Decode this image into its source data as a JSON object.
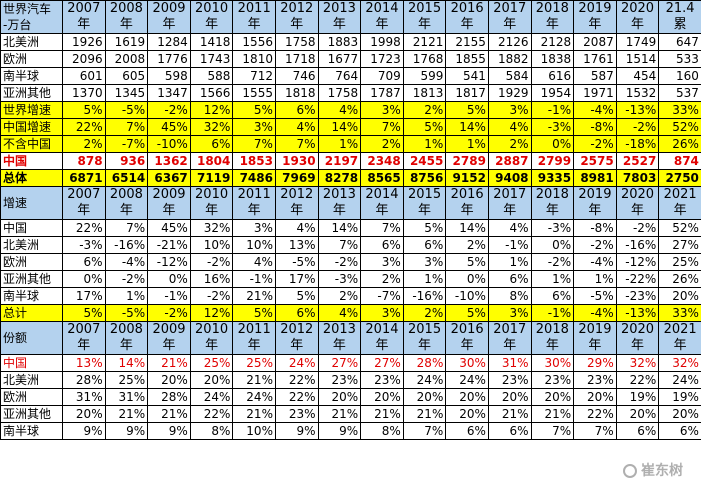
{
  "section1": {
    "header_label_line1": "世界汽车",
    "header_label_line2": "-万台",
    "year_headers": [
      "2007",
      "2008",
      "2009",
      "2010",
      "2011",
      "2012",
      "2013",
      "2014",
      "2015",
      "2016",
      "2017",
      "2018",
      "2019",
      "2020",
      "21.4"
    ],
    "year_suffixes": [
      "年",
      "年",
      "年",
      "年",
      "年",
      "年",
      "年",
      "年",
      "年",
      "年",
      "年",
      "年",
      "年",
      "年",
      "累"
    ],
    "rows": [
      {
        "label": "北美洲",
        "style": "",
        "values": [
          "1926",
          "1619",
          "1284",
          "1418",
          "1556",
          "1758",
          "1883",
          "1998",
          "2121",
          "2155",
          "2126",
          "2128",
          "2087",
          "1749",
          "647"
        ]
      },
      {
        "label": "欧洲",
        "style": "",
        "values": [
          "2096",
          "2008",
          "1776",
          "1743",
          "1810",
          "1718",
          "1677",
          "1723",
          "1768",
          "1855",
          "1882",
          "1838",
          "1761",
          "1514",
          "533"
        ]
      },
      {
        "label": "南半球",
        "style": "",
        "values": [
          "601",
          "605",
          "598",
          "588",
          "712",
          "746",
          "764",
          "709",
          "599",
          "541",
          "584",
          "616",
          "587",
          "454",
          "160"
        ]
      },
      {
        "label": "亚洲其他",
        "style": "",
        "values": [
          "1370",
          "1345",
          "1347",
          "1566",
          "1555",
          "1818",
          "1758",
          "1787",
          "1813",
          "1817",
          "1929",
          "1954",
          "1971",
          "1532",
          "537"
        ]
      },
      {
        "label": "世界增速",
        "style": "yellow",
        "values": [
          "5%",
          "-5%",
          "-2%",
          "12%",
          "5%",
          "6%",
          "4%",
          "3%",
          "2%",
          "5%",
          "3%",
          "-1%",
          "-4%",
          "-13%",
          "33%"
        ]
      },
      {
        "label": "中国增速",
        "style": "yellow",
        "values": [
          "22%",
          "7%",
          "45%",
          "32%",
          "3%",
          "4%",
          "14%",
          "7%",
          "5%",
          "14%",
          "4%",
          "-3%",
          "-8%",
          "-2%",
          "52%"
        ]
      },
      {
        "label": "不含中国",
        "style": "yellow",
        "values": [
          "2%",
          "-7%",
          "-10%",
          "6%",
          "7%",
          "7%",
          "1%",
          "2%",
          "1%",
          "1%",
          "2%",
          "0%",
          "-2%",
          "-18%",
          "26%"
        ]
      },
      {
        "label": "中国",
        "style": "red",
        "values": [
          "878",
          "936",
          "1362",
          "1804",
          "1853",
          "1930",
          "2197",
          "2348",
          "2455",
          "2789",
          "2887",
          "2799",
          "2575",
          "2527",
          "874"
        ]
      },
      {
        "label": "总体",
        "style": "yellow bold",
        "values": [
          "6871",
          "6514",
          "6367",
          "7119",
          "7486",
          "7969",
          "8278",
          "8565",
          "8756",
          "9152",
          "9408",
          "9335",
          "8981",
          "7803",
          "2750"
        ]
      }
    ]
  },
  "section2": {
    "header_label": "增速",
    "year_headers": [
      "2007",
      "2008",
      "2009",
      "2010",
      "2011",
      "2012",
      "2013",
      "2014",
      "2015",
      "2016",
      "2017",
      "2018",
      "2019",
      "2020",
      "2021"
    ],
    "year_suffix": "年",
    "rows": [
      {
        "label": "中国",
        "style": "",
        "values": [
          "22%",
          "7%",
          "45%",
          "32%",
          "3%",
          "4%",
          "14%",
          "7%",
          "5%",
          "14%",
          "4%",
          "-3%",
          "-8%",
          "-2%",
          "52%"
        ]
      },
      {
        "label": "北美洲",
        "style": "",
        "values": [
          "-3%",
          "-16%",
          "-21%",
          "10%",
          "10%",
          "13%",
          "7%",
          "6%",
          "6%",
          "2%",
          "-1%",
          "0%",
          "-2%",
          "-16%",
          "27%"
        ]
      },
      {
        "label": "欧洲",
        "style": "",
        "values": [
          "6%",
          "-4%",
          "-12%",
          "-2%",
          "4%",
          "-5%",
          "-2%",
          "3%",
          "3%",
          "5%",
          "1%",
          "-2%",
          "-4%",
          "-12%",
          "25%"
        ]
      },
      {
        "label": "亚洲其他",
        "style": "",
        "values": [
          "0%",
          "-2%",
          "0%",
          "16%",
          "-1%",
          "17%",
          "-3%",
          "2%",
          "1%",
          "0%",
          "6%",
          "1%",
          "1%",
          "-22%",
          "26%"
        ]
      },
      {
        "label": "南半球",
        "style": "",
        "values": [
          "17%",
          "1%",
          "-1%",
          "-2%",
          "21%",
          "5%",
          "2%",
          "-7%",
          "-16%",
          "-10%",
          "8%",
          "6%",
          "-5%",
          "-23%",
          "20%"
        ]
      },
      {
        "label": "总计",
        "style": "yellow",
        "values": [
          "5%",
          "-5%",
          "-2%",
          "12%",
          "5%",
          "6%",
          "4%",
          "3%",
          "2%",
          "5%",
          "3%",
          "-1%",
          "-4%",
          "-13%",
          "33%"
        ]
      }
    ]
  },
  "section3": {
    "header_label": "份额",
    "year_headers": [
      "2007",
      "2008",
      "2009",
      "2010",
      "2011",
      "2012",
      "2013",
      "2014",
      "2015",
      "2016",
      "2017",
      "2018",
      "2019",
      "2020",
      "2021"
    ],
    "year_suffix": "年",
    "rows": [
      {
        "label": "中国",
        "style": "pct-red",
        "values": [
          "13%",
          "14%",
          "21%",
          "25%",
          "25%",
          "24%",
          "27%",
          "27%",
          "28%",
          "30%",
          "31%",
          "30%",
          "29%",
          "32%",
          "32%"
        ]
      },
      {
        "label": "北美洲",
        "style": "",
        "values": [
          "28%",
          "25%",
          "20%",
          "20%",
          "21%",
          "22%",
          "23%",
          "23%",
          "24%",
          "24%",
          "23%",
          "23%",
          "23%",
          "22%",
          "24%"
        ]
      },
      {
        "label": "欧洲",
        "style": "",
        "values": [
          "31%",
          "31%",
          "28%",
          "24%",
          "24%",
          "22%",
          "20%",
          "20%",
          "20%",
          "20%",
          "20%",
          "20%",
          "20%",
          "19%",
          "19%"
        ]
      },
      {
        "label": "亚洲其他",
        "style": "",
        "values": [
          "20%",
          "21%",
          "21%",
          "22%",
          "21%",
          "23%",
          "21%",
          "21%",
          "21%",
          "20%",
          "21%",
          "21%",
          "22%",
          "20%",
          "20%"
        ]
      },
      {
        "label": "南半球",
        "style": "",
        "values": [
          "9%",
          "9%",
          "9%",
          "8%",
          "10%",
          "9%",
          "9%",
          "8%",
          "7%",
          "6%",
          "6%",
          "7%",
          "7%",
          "6%",
          "6%"
        ]
      }
    ]
  },
  "watermark": {
    "text": "崔东树",
    "icon": "wechat-icon"
  },
  "colors": {
    "header_bg": "#b4d2ee",
    "highlight": "#ffff00",
    "red_text": "#e00000"
  }
}
